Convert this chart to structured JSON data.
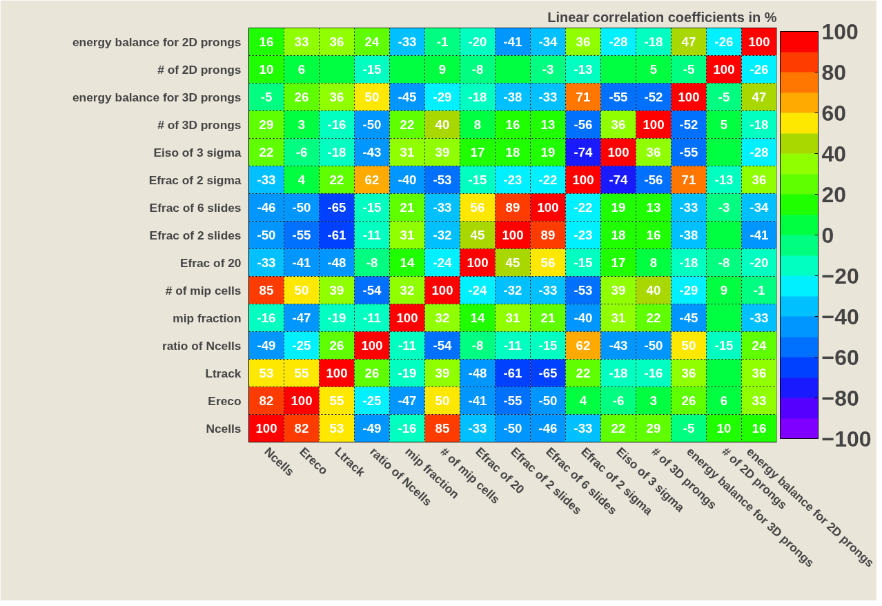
{
  "chart_data": {
    "type": "heatmap",
    "title": "Linear correlation coefficients in %",
    "categories": [
      "Ncells",
      "Ereco",
      "Ltrack",
      "ratio of Ncells",
      "mip fraction",
      "# of mip cells",
      "Efrac of 20",
      "Efrac of 2 slides",
      "Efrac of 6 slides",
      "Efrac of 2 sigma",
      "Eiso of 3 sigma",
      "# of 3D prongs",
      "energy balance for 3D prongs",
      "# of 2D prongs",
      "energy balance for 2D prongs"
    ],
    "y_categories": [
      "energy balance for 2D prongs",
      "# of 2D prongs",
      "energy balance for 3D prongs",
      "# of 3D prongs",
      "Eiso of 3 sigma",
      "Efrac of 2 sigma",
      "Efrac of 6 slides",
      "Efrac of 2 slides",
      "Efrac of 20",
      "# of mip cells",
      "mip fraction",
      "ratio of Ncells",
      "Ltrack",
      "Ereco",
      "Ncells"
    ],
    "cells": [
      [
        16,
        33,
        36,
        24,
        -33,
        -1,
        -20,
        -41,
        -34,
        36,
        -28,
        -18,
        47,
        -26,
        100
      ],
      [
        10,
        6,
        0,
        -15,
        0,
        9,
        -8,
        0,
        -3,
        -13,
        0,
        5,
        -5,
        100,
        -26
      ],
      [
        -5,
        26,
        36,
        50,
        -45,
        -29,
        -18,
        -38,
        -33,
        71,
        -55,
        -52,
        100,
        -5,
        47
      ],
      [
        29,
        3,
        -16,
        -50,
        22,
        40,
        8,
        16,
        13,
        -56,
        36,
        100,
        -52,
        5,
        -18
      ],
      [
        22,
        -6,
        -18,
        -43,
        31,
        39,
        17,
        18,
        19,
        -74,
        100,
        36,
        -55,
        0,
        -28
      ],
      [
        -33,
        4,
        22,
        62,
        -40,
        -53,
        -15,
        -23,
        -22,
        100,
        -74,
        -56,
        71,
        -13,
        36
      ],
      [
        -46,
        -50,
        -65,
        -15,
        21,
        -33,
        56,
        89,
        100,
        -22,
        19,
        13,
        -33,
        -3,
        -34
      ],
      [
        -50,
        -55,
        -61,
        -11,
        31,
        -32,
        45,
        100,
        89,
        -23,
        18,
        16,
        -38,
        0,
        -41
      ],
      [
        -33,
        -41,
        -48,
        -8,
        14,
        -24,
        100,
        45,
        56,
        -15,
        17,
        8,
        -18,
        -8,
        -20
      ],
      [
        85,
        50,
        39,
        -54,
        32,
        100,
        -24,
        -32,
        -33,
        -53,
        39,
        40,
        -29,
        9,
        -1
      ],
      [
        -16,
        -47,
        -19,
        -11,
        100,
        32,
        14,
        31,
        21,
        -40,
        31,
        22,
        -45,
        0,
        -33
      ],
      [
        -49,
        -25,
        26,
        100,
        -11,
        -54,
        -8,
        -11,
        -15,
        62,
        -43,
        -50,
        50,
        -15,
        24
      ],
      [
        53,
        55,
        100,
        26,
        -19,
        39,
        -48,
        -61,
        -65,
        22,
        -18,
        -16,
        36,
        0,
        36
      ],
      [
        82,
        100,
        55,
        -25,
        -47,
        50,
        -41,
        -55,
        -50,
        4,
        -6,
        3,
        26,
        6,
        33
      ],
      [
        100,
        82,
        53,
        -49,
        -16,
        85,
        -33,
        -50,
        -46,
        -33,
        22,
        29,
        -5,
        10,
        16
      ]
    ],
    "cell_labels": [
      [
        "16",
        "33",
        "36",
        "24",
        "-33",
        "-1",
        "-20",
        "-41",
        "-34",
        "36",
        "-28",
        "-18",
        "47",
        "-26",
        "100"
      ],
      [
        "10",
        "6",
        null,
        "-15",
        null,
        "9",
        "-8",
        null,
        "-3",
        "-13",
        null,
        "5",
        "-5",
        "100",
        "-26"
      ],
      [
        "-5",
        "26",
        "36",
        "50",
        "-45",
        "-29",
        "-18",
        "-38",
        "-33",
        "71",
        "-55",
        "-52",
        "100",
        "-5",
        "47"
      ],
      [
        "29",
        "3",
        "-16",
        "-50",
        "22",
        "40",
        "8",
        "16",
        "13",
        "-56",
        "36",
        "100",
        "-52",
        "5",
        "-18"
      ],
      [
        "22",
        "-6",
        "-18",
        "-43",
        "31",
        "39",
        "17",
        "18",
        "19",
        "-74",
        "100",
        "36",
        "-55",
        null,
        "-28"
      ],
      [
        "-33",
        "4",
        "22",
        "62",
        "-40",
        "-53",
        "-15",
        "-23",
        "-22",
        "100",
        "-74",
        "-56",
        "71",
        "-13",
        "36"
      ],
      [
        "-46",
        "-50",
        "-65",
        "-15",
        "21",
        "-33",
        "56",
        "89",
        "100",
        "-22",
        "19",
        "13",
        "-33",
        "-3",
        "-34"
      ],
      [
        "-50",
        "-55",
        "-61",
        "-11",
        "31",
        "-32",
        "45",
        "100",
        "89",
        "-23",
        "18",
        "16",
        "-38",
        null,
        "-41"
      ],
      [
        "-33",
        "-41",
        "-48",
        "-8",
        "14",
        "-24",
        "100",
        "45",
        "56",
        "-15",
        "17",
        "8",
        "-18",
        "-8",
        "-20"
      ],
      [
        "85",
        "50",
        "39",
        "-54",
        "32",
        "100",
        "-24",
        "-32",
        "-33",
        "-53",
        "39",
        "40",
        "-29",
        "9",
        "-1"
      ],
      [
        "-16",
        "-47",
        "-19",
        "-11",
        "100",
        "32",
        "14",
        "31",
        "21",
        "-40",
        "31",
        "22",
        "-45",
        null,
        "-33"
      ],
      [
        "-49",
        "-25",
        "26",
        "100",
        "-11",
        "-54",
        "-8",
        "-11",
        "-15",
        "62",
        "-43",
        "-50",
        "50",
        "-15",
        "24"
      ],
      [
        "53",
        "55",
        "100",
        "26",
        "-19",
        "39",
        "-48",
        "-61",
        "-65",
        "22",
        "-18",
        "-16",
        "36",
        null,
        "36"
      ],
      [
        "82",
        "100",
        "55",
        "-25",
        "-47",
        "50",
        "-41",
        "-55",
        "-50",
        "4",
        "-6",
        "3",
        "26",
        "6",
        "33"
      ],
      [
        "100",
        "82",
        "53",
        "-49",
        "-16",
        "85",
        "-33",
        "-50",
        "-46",
        "-33",
        "22",
        "29",
        "-5",
        "10",
        "16"
      ]
    ],
    "clim": [
      -100,
      100
    ],
    "cticks": [
      -100,
      -80,
      -60,
      -40,
      -20,
      0,
      20,
      40,
      60,
      80,
      100
    ],
    "grid": true
  }
}
